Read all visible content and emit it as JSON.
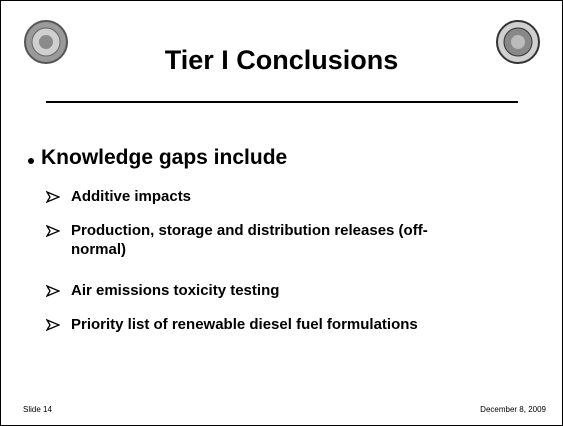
{
  "header": {
    "title": "Tier I Conclusions"
  },
  "body": {
    "bullet": "Knowledge gaps include",
    "subbullets": [
      "Additive impacts",
      "Production, storage and distribution releases (off-normal)",
      "Air emissions toxicity testing",
      "Priority list of renewable diesel fuel formulations"
    ]
  },
  "footer": {
    "slide": "Slide 14",
    "date": "December 8, 2009"
  }
}
